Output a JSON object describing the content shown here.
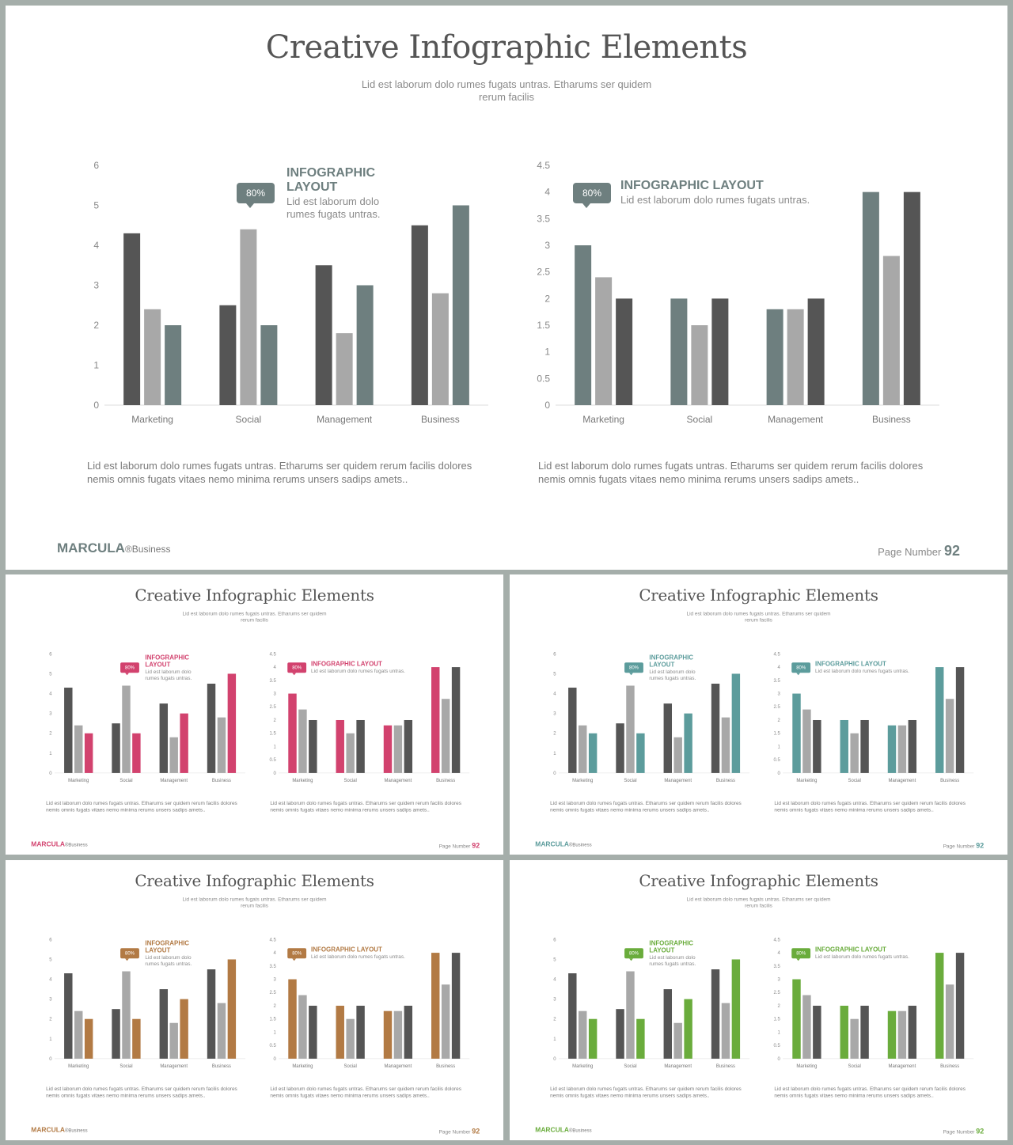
{
  "title": "Creative Infographic Elements",
  "subtitle": "Lid est laborum dolo rumes fugats untras. Etharums ser quidem rerum facilis",
  "brand": "MARCULA",
  "brand_sub": "®Business",
  "page_label": "Page Number",
  "page_number": "92",
  "left_panel": {
    "callout": "80%",
    "info_title": "INFOGRAPHIC LAYOUT",
    "info_body": "Lid est laborum dolo rumes fugats untras.",
    "description": "Lid est laborum dolo rumes fugats untras. Etharums ser quidem rerum facilis dolores nemis omnis fugats vitaes nemo minima rerums unsers sadips amets.."
  },
  "right_panel": {
    "callout": "80%",
    "info_title": "INFOGRAPHIC LAYOUT",
    "info_body": "Lid est laborum dolo rumes fugats untras.",
    "description": "Lid est laborum dolo rumes fugats untras. Etharums ser quidem rerum facilis dolores nemis omnis fugats vitaes nemo minima rerums unsers sadips amets.."
  },
  "variants": [
    {
      "accent": "#6e7f7f"
    },
    {
      "accent": "#d2426e"
    },
    {
      "accent": "#5c9c9c"
    },
    {
      "accent": "#b27a44"
    },
    {
      "accent": "#6aac3c"
    }
  ],
  "colors": {
    "dark": "#555555",
    "light": "#a8a8a8"
  },
  "chart_data": [
    {
      "type": "bar",
      "categories": [
        "Marketing",
        "Social",
        "Management",
        "Business"
      ],
      "ylim": [
        0,
        6
      ],
      "yticks": [
        "0",
        "1",
        "2",
        "3",
        "4",
        "5",
        "6"
      ],
      "series": [
        {
          "values": [
            4.3,
            2.5,
            3.5,
            4.5
          ]
        },
        {
          "values": [
            2.4,
            4.4,
            1.8,
            2.8
          ]
        },
        {
          "values": [
            2.0,
            2.0,
            3.0,
            5.0
          ]
        }
      ]
    },
    {
      "type": "bar",
      "categories": [
        "Marketing",
        "Social",
        "Management",
        "Business"
      ],
      "ylim": [
        0,
        4.5
      ],
      "yticks": [
        "0",
        "0.5",
        "1",
        "1.5",
        "2",
        "2.5",
        "3",
        "3.5",
        "4",
        "4.5"
      ],
      "series": [
        {
          "values": [
            3.0,
            2.0,
            1.8,
            4.0
          ]
        },
        {
          "values": [
            2.4,
            1.5,
            1.8,
            2.8
          ]
        },
        {
          "values": [
            2.0,
            2.0,
            2.0,
            4.0
          ]
        }
      ]
    }
  ]
}
